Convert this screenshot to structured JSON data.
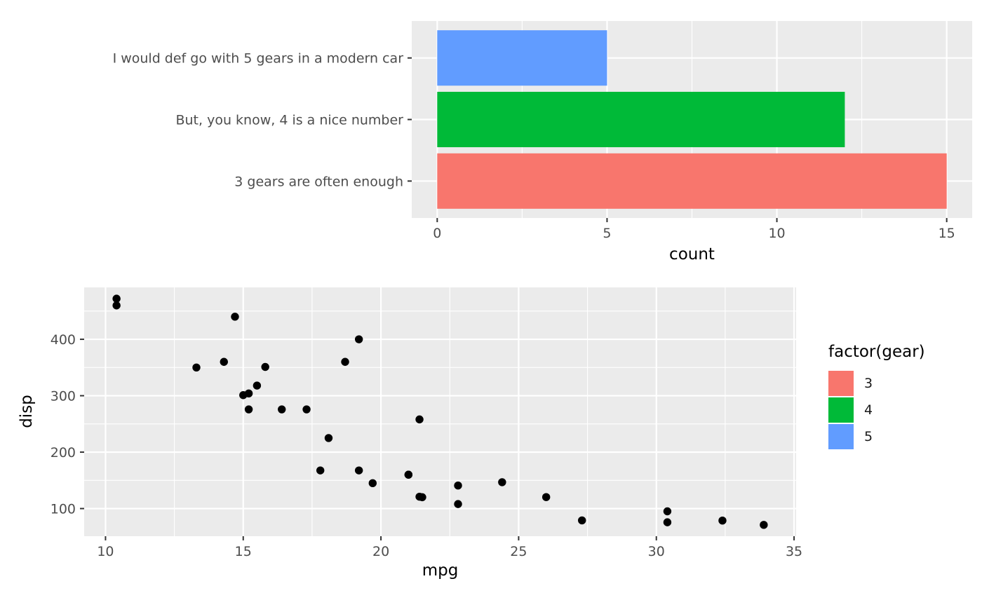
{
  "figure": {
    "background": "#FFFFFF",
    "panel_background": "#EBEBEB",
    "grid_color": "#FFFFFF",
    "tick_color": "#333333",
    "axis_text_color": "#4D4D4D",
    "axis_title_color": "#000000"
  },
  "chart_data": [
    {
      "type": "bar",
      "orientation": "horizontal",
      "xlabel": "count",
      "ylabel": "",
      "categories": [
        "I would def go with 5 gears in a modern car",
        "But, you know, 4 is a nice number",
        "3 gears are often enough"
      ],
      "values": [
        5,
        12,
        15
      ],
      "bar_colors": [
        "#619CFF",
        "#00BA38",
        "#F8766D"
      ],
      "x_ticks": [
        0,
        5,
        10,
        15
      ],
      "x_minor_ticks": [
        2.5,
        7.5,
        12.5
      ],
      "xlim": [
        0,
        15
      ],
      "grid": true,
      "legend_position": "none"
    },
    {
      "type": "scatter",
      "xlabel": "mpg",
      "ylabel": "disp",
      "x_ticks": [
        10,
        15,
        20,
        25,
        30,
        35
      ],
      "x_minor_ticks": [
        12.5,
        17.5,
        22.5,
        27.5,
        32.5
      ],
      "y_ticks": [
        100,
        200,
        300,
        400
      ],
      "y_minor_ticks": [
        150,
        250,
        350,
        450
      ],
      "xlim": [
        9.225,
        35.075
      ],
      "ylim": [
        51,
        492
      ],
      "grid": true,
      "point_color": "#000000",
      "legend": {
        "title": "factor(gear)",
        "position": "right",
        "entries": [
          {
            "label": "3",
            "color": "#F8766D"
          },
          {
            "label": "4",
            "color": "#00BA38"
          },
          {
            "label": "5",
            "color": "#619CFF"
          }
        ]
      },
      "points": [
        [
          21.0,
          160
        ],
        [
          21.0,
          160
        ],
        [
          22.8,
          108
        ],
        [
          21.4,
          258
        ],
        [
          18.7,
          360
        ],
        [
          18.1,
          225
        ],
        [
          14.3,
          360
        ],
        [
          24.4,
          146.7
        ],
        [
          22.8,
          140.8
        ],
        [
          19.2,
          167.6
        ],
        [
          17.8,
          167.6
        ],
        [
          16.4,
          275.8
        ],
        [
          17.3,
          275.8
        ],
        [
          15.2,
          275.8
        ],
        [
          10.4,
          472
        ],
        [
          10.4,
          460
        ],
        [
          14.7,
          440
        ],
        [
          32.4,
          78.7
        ],
        [
          30.4,
          75.7
        ],
        [
          33.9,
          71.1
        ],
        [
          21.5,
          120.1
        ],
        [
          15.5,
          318
        ],
        [
          15.2,
          304
        ],
        [
          13.3,
          350
        ],
        [
          19.2,
          400
        ],
        [
          27.3,
          79
        ],
        [
          26.0,
          120.3
        ],
        [
          30.4,
          95.1
        ],
        [
          15.8,
          351
        ],
        [
          19.7,
          145
        ],
        [
          15.0,
          301
        ],
        [
          21.4,
          121
        ]
      ]
    }
  ]
}
